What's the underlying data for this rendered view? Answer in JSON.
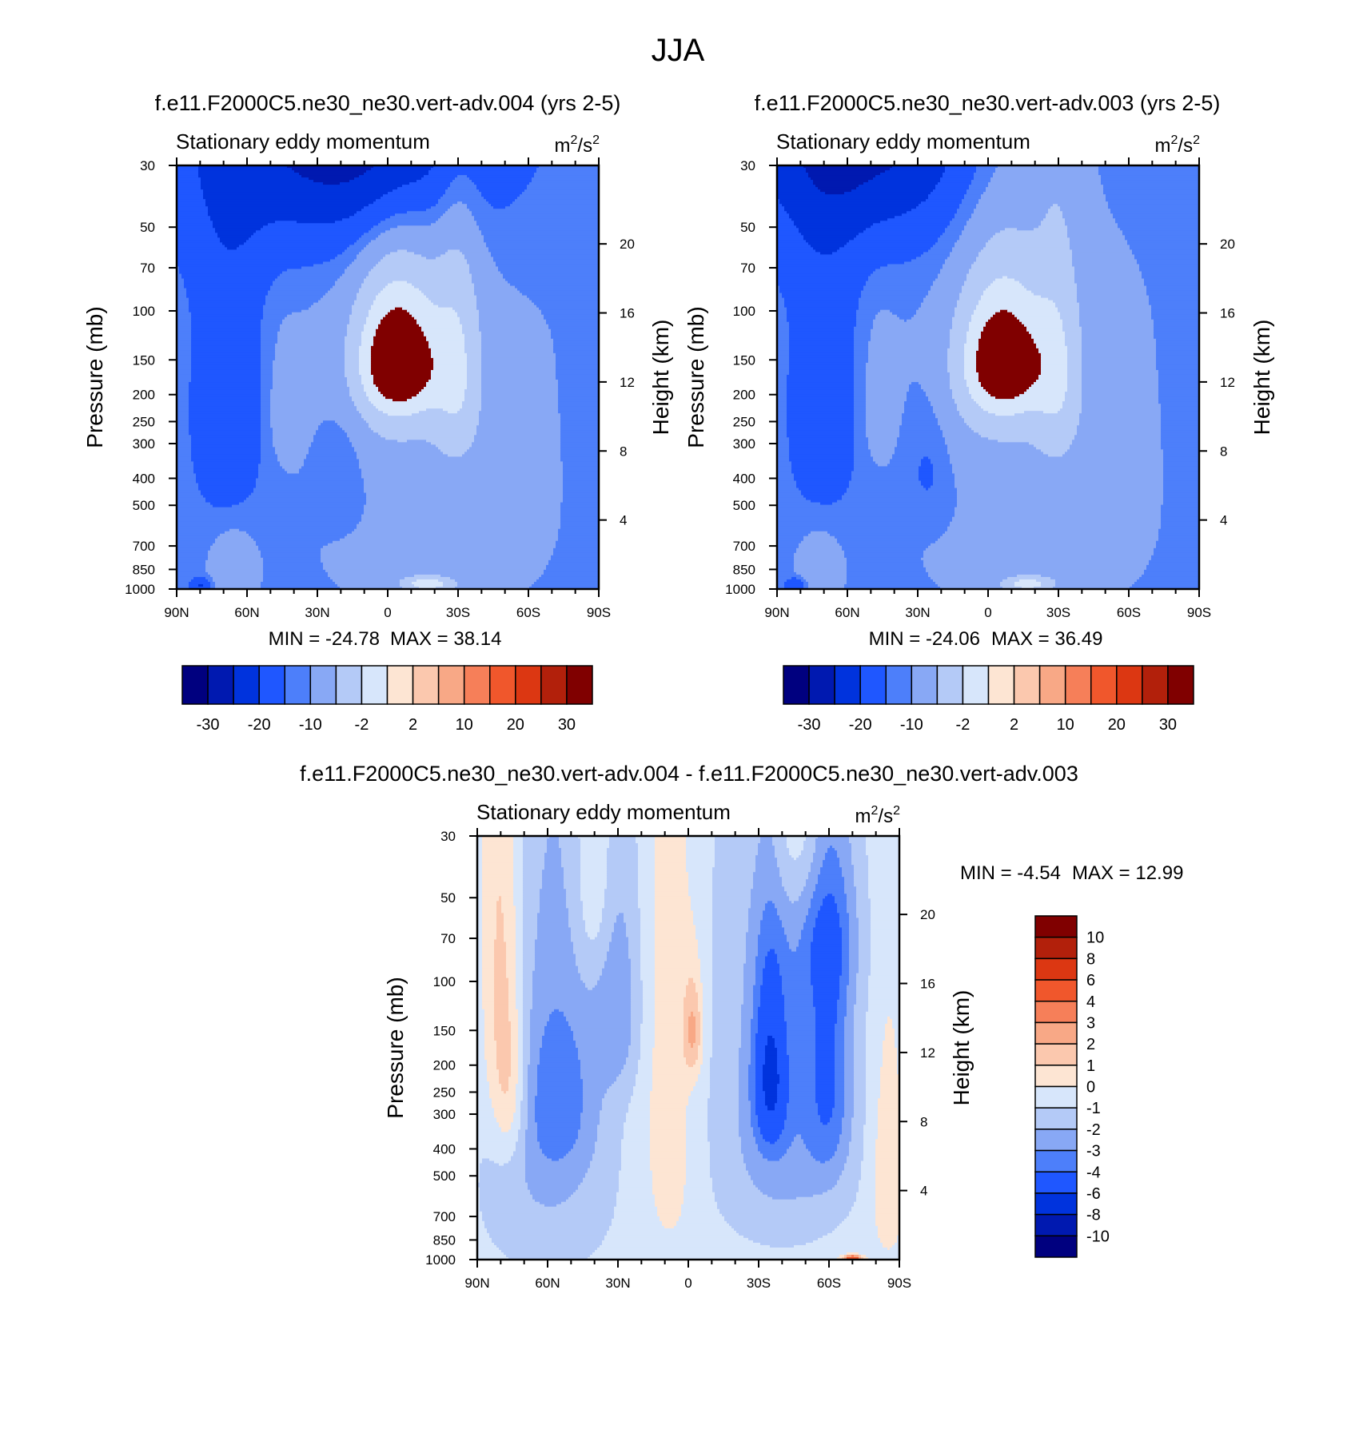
{
  "figure_title": "JJA",
  "palette": {
    "neg": [
      "#00007f",
      "#0019b0",
      "#0033dd",
      "#1f57ff",
      "#4d7ffa",
      "#88a8f5",
      "#b4caf7",
      "#d7e6fb"
    ],
    "pos": [
      "#fde5d3",
      "#fbc8ae",
      "#f8a886",
      "#f67f59",
      "#f0572c",
      "#dc3712",
      "#b2200b",
      "#800000"
    ]
  },
  "chart_data": [
    {
      "id": "panel-004",
      "type": "heatmap",
      "subtype": "latitude-pressure filled contour",
      "case_title": "f.e11.F2000C5.ne30_ne30.vert-adv.004 (yrs 2-5)",
      "left_label": "Stationary eddy momentum",
      "units_base": "m",
      "units_exp1": "2",
      "units_mid": "/s",
      "units_exp2": "2",
      "xlabel": "",
      "ylabel": "Pressure (mb)",
      "ylabel_right": "Height (km)",
      "x_ticks": [
        "90N",
        "60N",
        "30N",
        "0",
        "30S",
        "60S",
        "90S"
      ],
      "y_ticks": [
        "30",
        "50",
        "70",
        "100",
        "150",
        "200",
        "250",
        "300",
        "400",
        "500",
        "700",
        "850",
        "1000"
      ],
      "height_ticks": [
        "4",
        "8",
        "12",
        "16",
        "20"
      ],
      "xlim": [
        90,
        -90
      ],
      "ylim": [
        1000,
        30
      ],
      "min_label": "MIN = -24.78",
      "max_label": "MAX =  38.14",
      "levels": [
        "-30",
        "-20",
        "-10",
        "-2",
        "2",
        "10",
        "20",
        "30"
      ],
      "blobs": [
        {
          "lat": 12,
          "p": 5,
          "sx": 32,
          "sy": 24,
          "amp": -28
        },
        {
          "lat": 22,
          "p": 6,
          "sx": 52,
          "sy": 40,
          "amp": -15
        },
        {
          "lat": 68,
          "p": 230,
          "sx": 11,
          "sy": 210,
          "amp": -9
        },
        {
          "lat": 20,
          "p": 350,
          "sx": 8,
          "sy": 140,
          "amp": -6
        },
        {
          "lat": -10,
          "p": 140,
          "sx": 6,
          "sy": 30,
          "amp": -3
        },
        {
          "lat": -30,
          "p": 170,
          "sx": 7,
          "sy": 110,
          "amp": 14
        },
        {
          "lat": -5,
          "p": 150,
          "sx": 12,
          "sy": 55,
          "amp": 37
        },
        {
          "lat": -2,
          "p": 200,
          "sx": 22,
          "sy": 130,
          "amp": 7
        },
        {
          "lat": 45,
          "p": 230,
          "sx": 5,
          "sy": 80,
          "amp": 4
        },
        {
          "lat": 66,
          "p": 850,
          "sx": 6,
          "sy": 160,
          "amp": 8
        },
        {
          "lat": -17,
          "p": 960,
          "sx": 8,
          "sy": 45,
          "amp": 24
        },
        {
          "lat": -20,
          "p": 450,
          "sx": 40,
          "sy": 600,
          "amp": 3
        },
        {
          "lat": 80,
          "p": 970,
          "sx": 3,
          "sy": 40,
          "amp": -12
        }
      ]
    },
    {
      "id": "panel-003",
      "type": "heatmap",
      "subtype": "latitude-pressure filled contour",
      "case_title": "f.e11.F2000C5.ne30_ne30.vert-adv.003 (yrs 2-5)",
      "left_label": "Stationary eddy momentum",
      "units_base": "m",
      "units_exp1": "2",
      "units_mid": "/s",
      "units_exp2": "2",
      "xlabel": "",
      "ylabel": "Pressure (mb)",
      "ylabel_right": "Height (km)",
      "x_ticks": [
        "90N",
        "60N",
        "30N",
        "0",
        "30S",
        "60S",
        "90S"
      ],
      "y_ticks": [
        "30",
        "50",
        "70",
        "100",
        "150",
        "200",
        "250",
        "300",
        "400",
        "500",
        "700",
        "850",
        "1000"
      ],
      "height_ticks": [
        "4",
        "8",
        "12",
        "16",
        "20"
      ],
      "xlim": [
        90,
        -90
      ],
      "ylim": [
        1000,
        30
      ],
      "min_label": "MIN = -24.06",
      "max_label": "MAX =  36.49",
      "levels": [
        "-30",
        "-20",
        "-10",
        "-2",
        "2",
        "10",
        "20",
        "30"
      ],
      "blobs": [
        {
          "lat": 52,
          "p": 6,
          "sx": 28,
          "sy": 24,
          "amp": -22
        },
        {
          "lat": 52,
          "p": 6,
          "sx": 50,
          "sy": 40,
          "amp": -12
        },
        {
          "lat": 70,
          "p": 230,
          "sx": 11,
          "sy": 210,
          "amp": -8
        },
        {
          "lat": 25,
          "p": 350,
          "sx": 8,
          "sy": 140,
          "amp": -6
        },
        {
          "lat": -10,
          "p": 140,
          "sx": 6,
          "sy": 30,
          "amp": -3
        },
        {
          "lat": -30,
          "p": 170,
          "sx": 7,
          "sy": 110,
          "amp": 13
        },
        {
          "lat": -7,
          "p": 150,
          "sx": 12,
          "sy": 55,
          "amp": 35
        },
        {
          "lat": -4,
          "p": 200,
          "sx": 22,
          "sy": 130,
          "amp": 7
        },
        {
          "lat": 47,
          "p": 220,
          "sx": 5,
          "sy": 80,
          "amp": 5
        },
        {
          "lat": 72,
          "p": 850,
          "sx": 6,
          "sy": 160,
          "amp": 7
        },
        {
          "lat": -17,
          "p": 960,
          "sx": 8,
          "sy": 45,
          "amp": 23
        },
        {
          "lat": -20,
          "p": 450,
          "sx": 40,
          "sy": 600,
          "amp": 3
        },
        {
          "lat": 82,
          "p": 970,
          "sx": 3,
          "sy": 40,
          "amp": -12
        }
      ]
    },
    {
      "id": "panel-diff",
      "type": "heatmap",
      "subtype": "latitude-pressure filled contour (difference)",
      "case_title": "f.e11.F2000C5.ne30_ne30.vert-adv.004 - f.e11.F2000C5.ne30_ne30.vert-adv.003",
      "left_label": "Stationary eddy momentum",
      "units_base": "m",
      "units_exp1": "2",
      "units_mid": "/s",
      "units_exp2": "2",
      "xlabel": "",
      "ylabel": "Pressure (mb)",
      "ylabel_right": "Height (km)",
      "x_ticks": [
        "90N",
        "60N",
        "30N",
        "0",
        "30S",
        "60S",
        "90S"
      ],
      "y_ticks": [
        "30",
        "50",
        "70",
        "100",
        "150",
        "200",
        "250",
        "300",
        "400",
        "500",
        "700",
        "850",
        "1000"
      ],
      "height_ticks": [
        "4",
        "8",
        "12",
        "16",
        "20"
      ],
      "xlim": [
        90,
        -90
      ],
      "ylim": [
        1000,
        30
      ],
      "min_label": "MIN =  -4.54",
      "max_label": "MAX =  12.99",
      "levels": [
        "10",
        "8",
        "6",
        "4",
        "3",
        "2",
        "1",
        "0",
        "-1",
        "-2",
        "-3",
        "-4",
        "-6",
        "-8",
        "-10"
      ],
      "blobs": [
        {
          "lat": -35,
          "p": 220,
          "sx": 5,
          "sy": 110,
          "amp": -4.2
        },
        {
          "lat": -40,
          "p": 300,
          "sx": 20,
          "sy": 350,
          "amp": -2.2
        },
        {
          "lat": -60,
          "p": 200,
          "sx": 7,
          "sy": 200,
          "amp": -2.6
        },
        {
          "lat": -60,
          "p": 60,
          "sx": 10,
          "sy": 40,
          "amp": -1.5
        },
        {
          "lat": 55,
          "p": 250,
          "sx": 12,
          "sy": 160,
          "amp": -2.1
        },
        {
          "lat": 30,
          "p": 120,
          "sx": 7,
          "sy": 80,
          "amp": -2.0
        },
        {
          "lat": 60,
          "p": 500,
          "sx": 20,
          "sy": 400,
          "amp": -1.5
        },
        {
          "lat": -2,
          "p": 150,
          "sx": 3,
          "sy": 45,
          "amp": 2.6
        },
        {
          "lat": 76,
          "p": 230,
          "sx": 5,
          "sy": 140,
          "amp": 2.3
        },
        {
          "lat": 82,
          "p": 80,
          "sx": 5,
          "sy": 150,
          "amp": 1.5
        },
        {
          "lat": 40,
          "p": 40,
          "sx": 6,
          "sy": 40,
          "amp": 1.5
        },
        {
          "lat": -50,
          "p": 20,
          "sx": 12,
          "sy": 25,
          "amp": 2.5
        },
        {
          "lat": -85,
          "p": 500,
          "sx": 5,
          "sy": 300,
          "amp": 1.4
        },
        {
          "lat": 8,
          "p": 300,
          "sx": 8,
          "sy": 400,
          "amp": 1.2
        },
        {
          "lat": -70,
          "p": 990,
          "sx": 3,
          "sy": 20,
          "amp": 6
        }
      ]
    }
  ]
}
